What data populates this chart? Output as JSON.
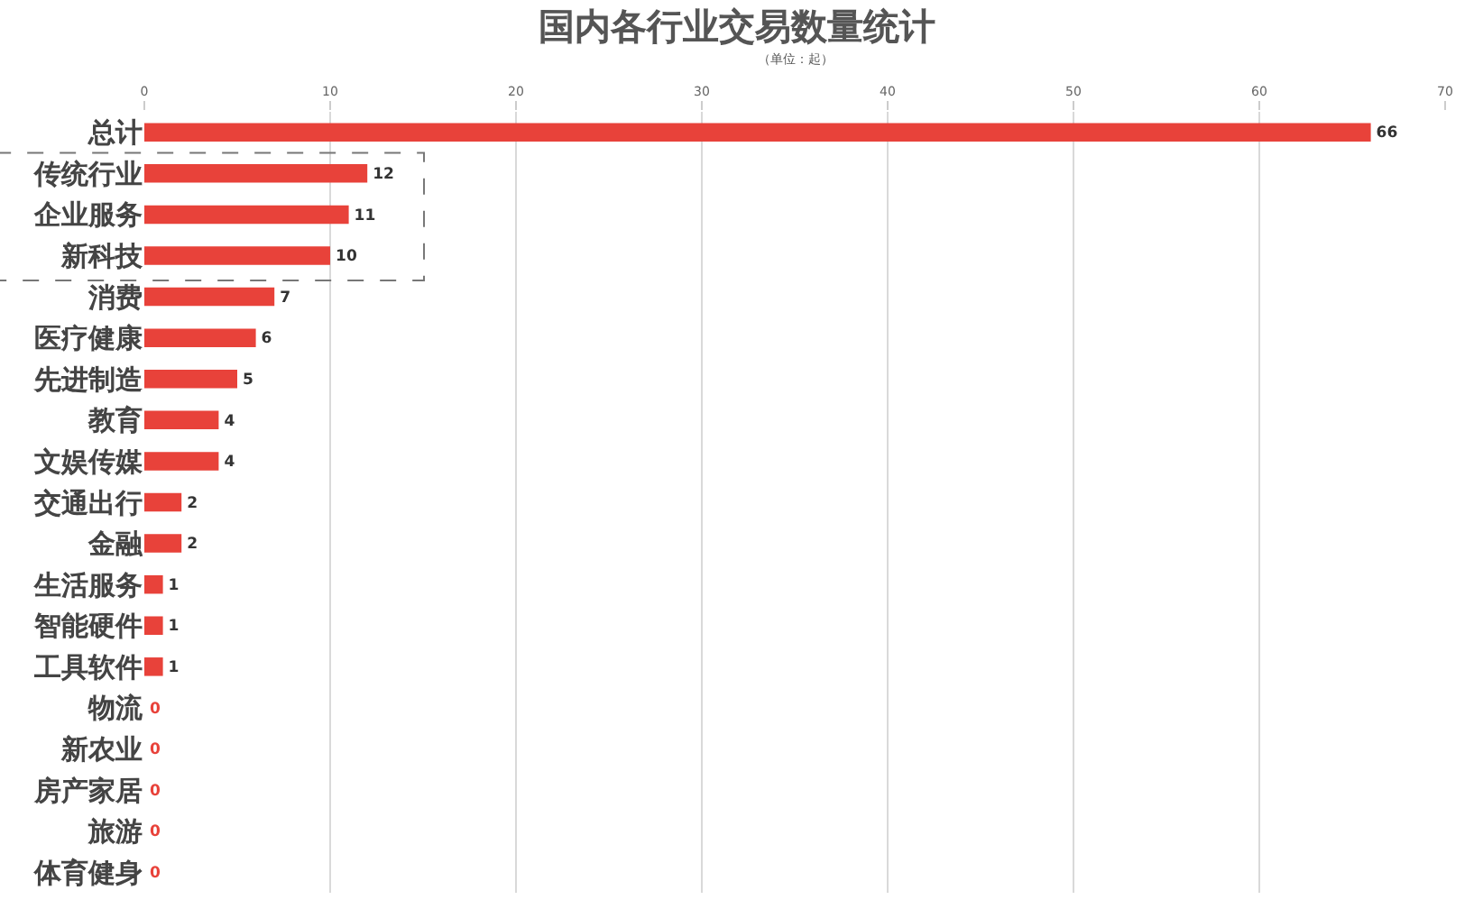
{
  "chart_data": {
    "type": "bar",
    "orientation": "horizontal",
    "title": "国内各行业交易数量统计",
    "subtitle": "（单位：起）",
    "categories": [
      "总计",
      "传统行业",
      "企业服务",
      "新科技",
      "消费",
      "医疗健康",
      "先进制造",
      "教育",
      "文娱传媒",
      "交通出行",
      "金融",
      "生活服务",
      "智能硬件",
      "工具软件",
      "物流",
      "新农业",
      "房产家居",
      "旅游",
      "体育健身"
    ],
    "values": [
      66,
      12,
      11,
      10,
      7,
      6,
      5,
      4,
      4,
      2,
      2,
      1,
      1,
      1,
      0,
      0,
      0,
      0,
      0
    ],
    "color": "#e8423a",
    "xlim": [
      0,
      70
    ],
    "xticks": [
      0,
      10,
      20,
      30,
      40,
      50,
      60,
      70
    ],
    "grid": "x",
    "data_labels": true,
    "legend": false
  }
}
